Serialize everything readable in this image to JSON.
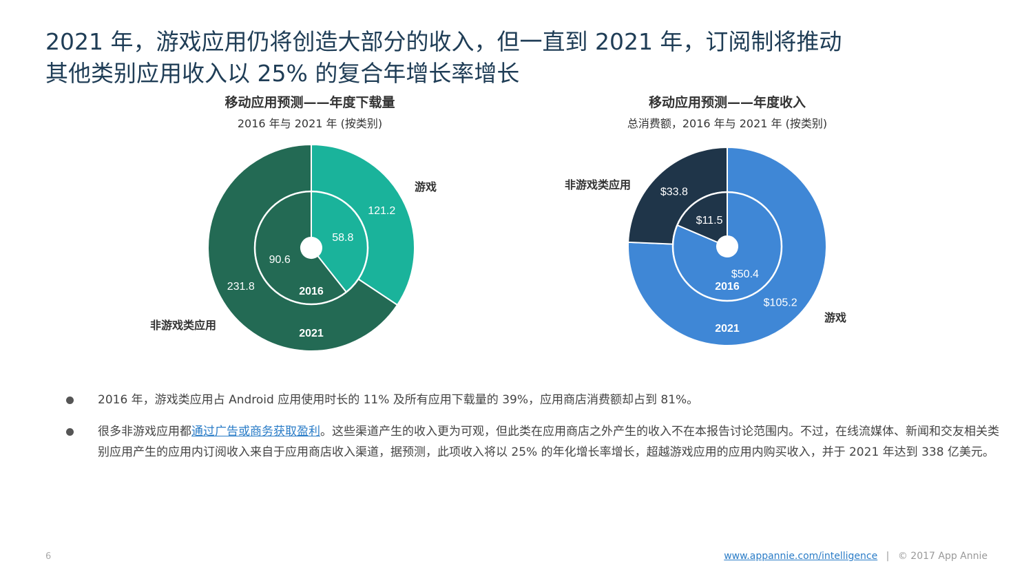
{
  "title": {
    "line1": "2021 年，游戏应用仍将创造大部分的收入，但一直到 2021 年，订阅制将推动",
    "line2": "其他类别应用收入以 25% 的复合年增长率增长"
  },
  "left_chart": {
    "title": "移动应用预测——年度下载量",
    "subtitle": "2016 年与 2021 年 (按类别)"
  },
  "right_chart": {
    "title": "移动应用预测——年度收入",
    "subtitle": "总消费额，2016 年与 2021 年 (按类别)"
  },
  "colors": {
    "games_downloads": "#1ab39b",
    "nongames_downloads": "#236a54",
    "games_revenue": "#3f87d6",
    "nongames_revenue": "#1f3549"
  },
  "chart_data": [
    {
      "type": "pie",
      "subtype": "nested-donut",
      "title": "移动应用预测——年度下载量",
      "subtitle": "2016 年与 2021 年 (按类别)",
      "categories": [
        "游戏",
        "非游戏类应用"
      ],
      "rings": [
        {
          "name": "2016",
          "position": "inner",
          "values": [
            58.8,
            90.6
          ],
          "labels": [
            "58.8",
            "90.6"
          ]
        },
        {
          "name": "2021",
          "position": "outer",
          "values": [
            121.2,
            231.8
          ],
          "labels": [
            "121.2",
            "231.8"
          ]
        }
      ]
    },
    {
      "type": "pie",
      "subtype": "nested-donut",
      "title": "移动应用预测——年度收入",
      "subtitle": "总消费额，2016 年与 2021 年 (按类别)",
      "categories": [
        "游戏",
        "非游戏类应用"
      ],
      "rings": [
        {
          "name": "2016",
          "position": "inner",
          "values": [
            50.4,
            11.5
          ],
          "labels": [
            "$50.4",
            "$11.5"
          ]
        },
        {
          "name": "2021",
          "position": "outer",
          "values": [
            105.2,
            33.8
          ],
          "labels": [
            "$105.2",
            "$33.8"
          ]
        }
      ]
    }
  ],
  "bullets": [
    {
      "text": "2016 年，游戏类应用占 Android 应用使用时长的 11% 及所有应用下载量的 39%，应用商店消费额却占到 81%。"
    },
    {
      "prefix": "很多非游戏应用都",
      "link": "通过广告或商务获取盈利",
      "suffix": "。这些渠道产生的收入更为可观，但此类在应用商店之外产生的收入不在本报告讨论范围内。不过，在线流媒体、新闻和交友相关类别应用产生的应用内订阅收入来自于应用商店收入渠道，据预测，此项收入将以 25% 的年化增长率增长，超越游戏应用的应用内购买收入，并于 2021 年达到 338 亿美元。"
    }
  ],
  "footer": {
    "page_number": "6",
    "link": "www.appannie.com/intelligence",
    "separator": "|",
    "copyright": "© 2017 App Annie"
  }
}
